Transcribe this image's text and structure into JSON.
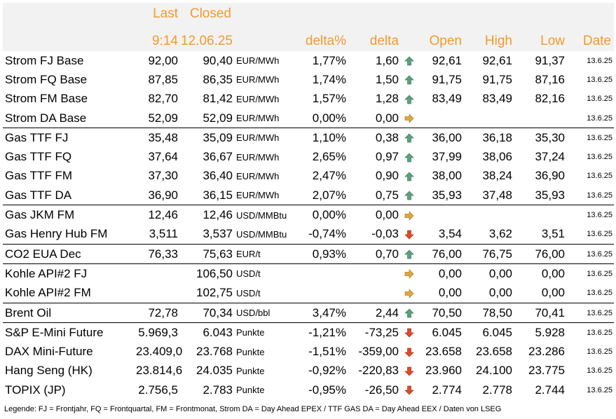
{
  "header": {
    "last_label": "Last",
    "closed_label": "Closed",
    "last_time": "9:14",
    "closed_date": "12.06.25",
    "delta_pct_label": "delta%",
    "delta_label": "delta",
    "open_label": "Open",
    "high_label": "High",
    "low_label": "Low",
    "date_label": "Date"
  },
  "colors": {
    "header_text": "#f29a2e",
    "header_bg": "#f2f2f2",
    "up": "#5aa27c",
    "down": "#e04a2a",
    "flat": "#e0a640"
  },
  "rows": [
    {
      "name": "Strom FJ Base",
      "last": "92,00",
      "closed": "90,40",
      "unit": "EUR/MWh",
      "delta_pct": "1,77%",
      "delta": "1,60",
      "trend": "up",
      "trend_icon": "arrow-up-icon",
      "open": "92,61",
      "high": "92,61",
      "low": "91,37",
      "date": "13.6.25",
      "group_start": false
    },
    {
      "name": "Strom FQ Base",
      "last": "87,85",
      "closed": "86,35",
      "unit": "EUR/MWh",
      "delta_pct": "1,74%",
      "delta": "1,50",
      "trend": "up",
      "trend_icon": "arrow-up-icon",
      "open": "91,75",
      "high": "91,75",
      "low": "87,16",
      "date": "13.6.25",
      "group_start": false
    },
    {
      "name": "Strom FM Base",
      "last": "82,70",
      "closed": "81,42",
      "unit": "EUR/MWh",
      "delta_pct": "1,57%",
      "delta": "1,28",
      "trend": "up",
      "trend_icon": "arrow-up-icon",
      "open": "83,49",
      "high": "83,49",
      "low": "82,16",
      "date": "13.6.25",
      "group_start": false
    },
    {
      "name": "Strom DA Base",
      "last": "52,09",
      "closed": "52,09",
      "unit": "EUR/MWh",
      "delta_pct": "0,00%",
      "delta": "0,00",
      "trend": "flat",
      "trend_icon": "arrow-right-icon",
      "open": "",
      "high": "",
      "low": "",
      "date": "13.6.25",
      "group_start": false
    },
    {
      "name": "Gas TTF FJ",
      "last": "35,48",
      "closed": "35,09",
      "unit": "EUR/MWh",
      "delta_pct": "1,10%",
      "delta": "0,38",
      "trend": "up",
      "trend_icon": "arrow-up-icon",
      "open": "36,00",
      "high": "36,18",
      "low": "35,30",
      "date": "13.6.25",
      "group_start": true
    },
    {
      "name": "Gas TTF FQ",
      "last": "37,64",
      "closed": "36,67",
      "unit": "EUR/MWh",
      "delta_pct": "2,65%",
      "delta": "0,97",
      "trend": "up",
      "trend_icon": "arrow-up-icon",
      "open": "37,99",
      "high": "38,06",
      "low": "37,24",
      "date": "13.6.25",
      "group_start": false
    },
    {
      "name": "Gas TTF FM",
      "last": "37,30",
      "closed": "36,40",
      "unit": "EUR/MWh",
      "delta_pct": "2,47%",
      "delta": "0,90",
      "trend": "up",
      "trend_icon": "arrow-up-icon",
      "open": "38,00",
      "high": "38,24",
      "low": "36,90",
      "date": "13.6.25",
      "group_start": false
    },
    {
      "name": "Gas TTF DA",
      "last": "36,90",
      "closed": "36,15",
      "unit": "EUR/MWh",
      "delta_pct": "2,07%",
      "delta": "0,75",
      "trend": "up",
      "trend_icon": "arrow-up-icon",
      "open": "35,93",
      "high": "37,48",
      "low": "35,93",
      "date": "13.6.25",
      "group_start": false
    },
    {
      "name": "Gas JKM FM",
      "last": "12,46",
      "closed": "12,46",
      "unit": "USD/MMBtu",
      "delta_pct": "0,00%",
      "delta": "0,00",
      "trend": "flat",
      "trend_icon": "arrow-right-icon",
      "open": "",
      "high": "",
      "low": "",
      "date": "13.6.25",
      "group_start": true
    },
    {
      "name": "Gas Henry Hub FM",
      "last": "3,511",
      "closed": "3,537",
      "unit": "USD/MMBtu",
      "delta_pct": "-0,74%",
      "delta": "-0,03",
      "trend": "down",
      "trend_icon": "arrow-down-icon",
      "open": "3,54",
      "high": "3,62",
      "low": "3,51",
      "date": "13.6.25",
      "group_start": false
    },
    {
      "name": "CO2 EUA Dec",
      "last": "76,33",
      "closed": "75,63",
      "unit": "EUR/t",
      "delta_pct": "0,93%",
      "delta": "0,70",
      "trend": "up",
      "trend_icon": "arrow-up-icon",
      "open": "76,00",
      "high": "76,75",
      "low": "76,00",
      "date": "13.6.25",
      "group_start": true
    },
    {
      "name": "Kohle API#2 FJ",
      "last": "",
      "closed": "106,50",
      "unit": "USD/t",
      "delta_pct": "",
      "delta": "",
      "trend": "flat",
      "trend_icon": "arrow-right-icon",
      "open": "0,00",
      "high": "0,00",
      "low": "0,00",
      "date": "13.6.25",
      "group_start": true
    },
    {
      "name": "Kohle API#2 FM",
      "last": "",
      "closed": "102,75",
      "unit": "USD/t",
      "delta_pct": "",
      "delta": "",
      "trend": "flat",
      "trend_icon": "arrow-right-icon",
      "open": "0,00",
      "high": "0,00",
      "low": "0,00",
      "date": "13.6.25",
      "group_start": false
    },
    {
      "name": "Brent Oil",
      "last": "72,78",
      "closed": "70,34",
      "unit": "USD/bbl",
      "delta_pct": "3,47%",
      "delta": "2,44",
      "trend": "up",
      "trend_icon": "arrow-up-icon",
      "open": "70,50",
      "high": "78,50",
      "low": "70,41",
      "date": "13.6.25",
      "group_start": true
    },
    {
      "name": "S&P E-Mini Future",
      "last": "5.969,3",
      "closed": "6.043",
      "unit": "Punkte",
      "delta_pct": "-1,21%",
      "delta": "-73,25",
      "trend": "down",
      "trend_icon": "arrow-down-icon",
      "open": "6.045",
      "high": "6.045",
      "low": "5.928",
      "date": "13.6.25",
      "group_start": true
    },
    {
      "name": "DAX Mini-Future",
      "last": "23.409,0",
      "closed": "23.768",
      "unit": "Punkte",
      "delta_pct": "-1,51%",
      "delta": "-359,00",
      "trend": "down",
      "trend_icon": "arrow-down-icon",
      "open": "23.658",
      "high": "23.658",
      "low": "23.286",
      "date": "13.6.25",
      "group_start": false
    },
    {
      "name": "Hang Seng (HK)",
      "last": "23.814,6",
      "closed": "24.035",
      "unit": "Punkte",
      "delta_pct": "-0,92%",
      "delta": "-220,83",
      "trend": "down",
      "trend_icon": "arrow-down-icon",
      "open": "23.960",
      "high": "24.100",
      "low": "23.775",
      "date": "13.6.25",
      "group_start": false
    },
    {
      "name": "TOPIX (JP)",
      "last": "2.756,5",
      "closed": "2.783",
      "unit": "Punkte",
      "delta_pct": "-0,95%",
      "delta": "-26,50",
      "trend": "down",
      "trend_icon": "arrow-down-icon",
      "open": "2.774",
      "high": "2.778",
      "low": "2.744",
      "date": "13.6.25",
      "group_start": false
    }
  ],
  "legend": "Legende: FJ = Frontjahr, FQ = Frontquartal, FM = Frontmonat, Strom DA = Day Ahead EPEX / TTF GAS DA = Day Ahead EEX / Daten von LSEG"
}
